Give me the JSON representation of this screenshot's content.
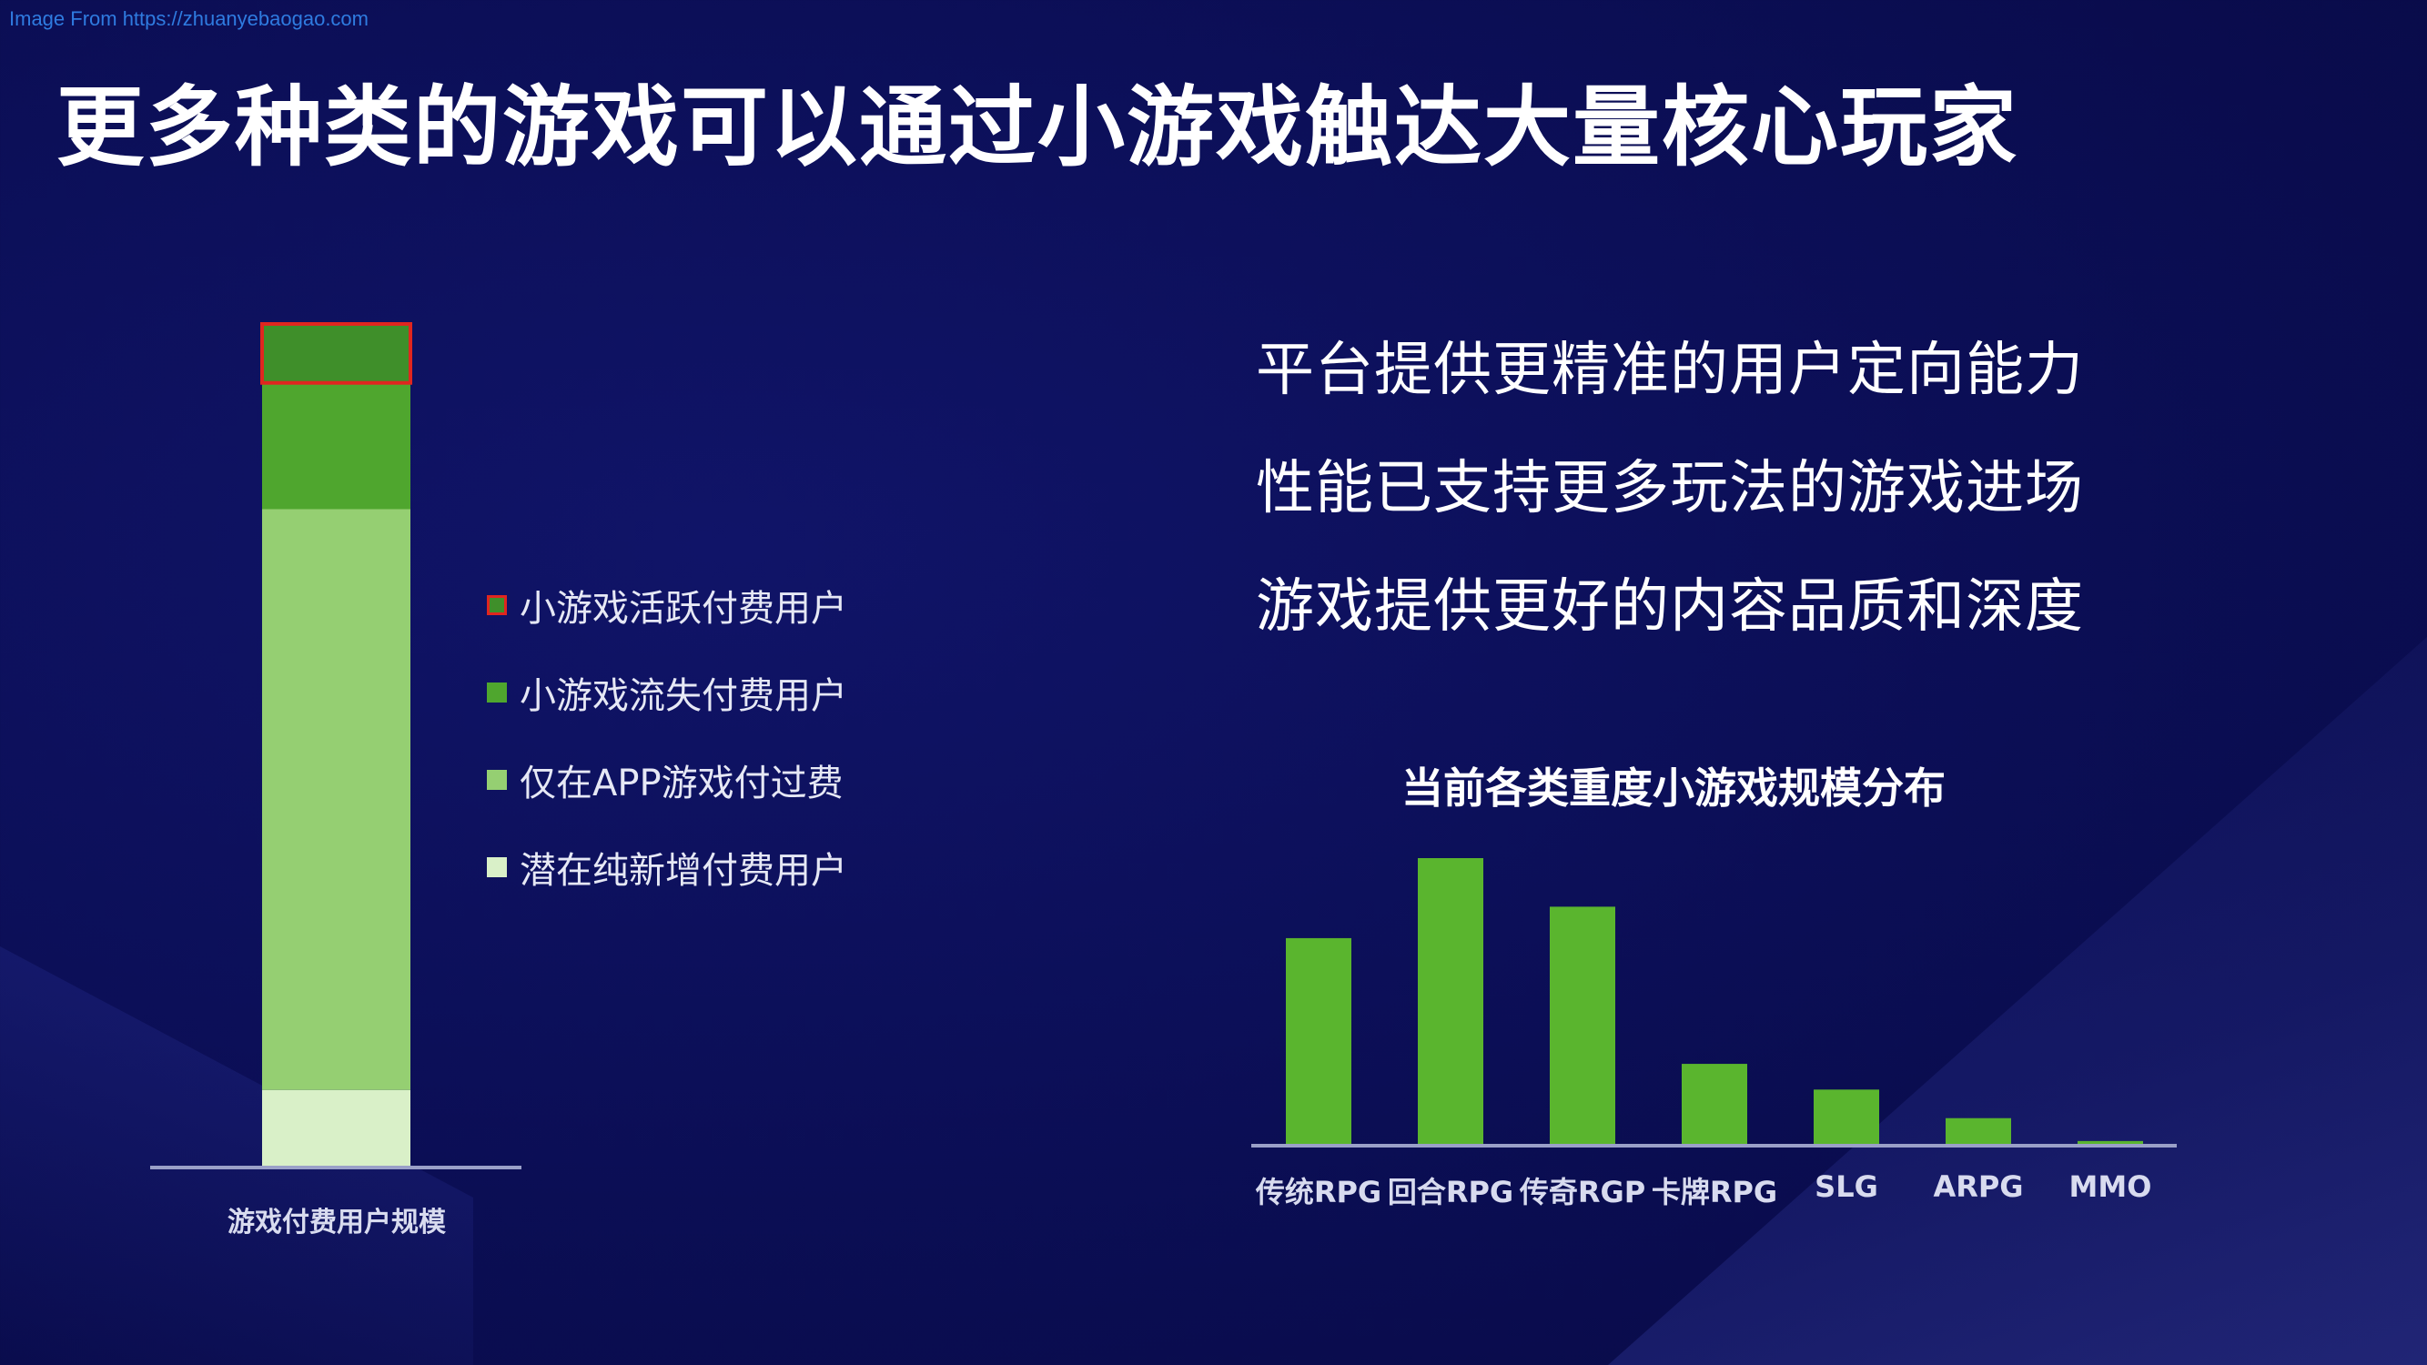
{
  "watermark": "Image From https://zhuanyebaogao.com",
  "title": "更多种类的游戏可以通过小游戏触达大量核心玩家",
  "colors": {
    "background": "#0b0e55",
    "active_paid": "#3f8f2a",
    "active_paid_border": "#e0261f",
    "churned_paid": "#4fa62e",
    "app_only": "#95cf72",
    "new_potential": "#d9f0c8",
    "bar_green": "#5ab52e"
  },
  "points": [
    "平台提供更精准的用户定向能力",
    "性能已支持更多玩法的游戏进场",
    "游戏提供更好的内容品质和深度"
  ],
  "chart_data": [
    {
      "type": "bar",
      "stacked": true,
      "categories": [
        "游戏付费用户规模"
      ],
      "series": [
        {
          "name": "潜在纯新增付费用户",
          "values": [
            9
          ]
        },
        {
          "name": "仅在APP游戏付过费",
          "values": [
            69
          ]
        },
        {
          "name": "小游戏流失付费用户",
          "values": [
            15
          ]
        },
        {
          "name": "小游戏活跃付费用户",
          "values": [
            7
          ]
        }
      ],
      "xlabel": "游戏付费用户规模",
      "legend_position": "right",
      "grid": false
    },
    {
      "type": "bar",
      "title": "当前各类重度小游戏规模分布",
      "categories": [
        "传统RPG",
        "回合RPG",
        "传奇RGP",
        "卡牌RPG",
        "SLG",
        "ARPG",
        "MMO"
      ],
      "values": [
        72,
        100,
        83,
        28,
        19,
        9,
        1
      ],
      "ylim": [
        0,
        100
      ],
      "grid": false
    }
  ]
}
